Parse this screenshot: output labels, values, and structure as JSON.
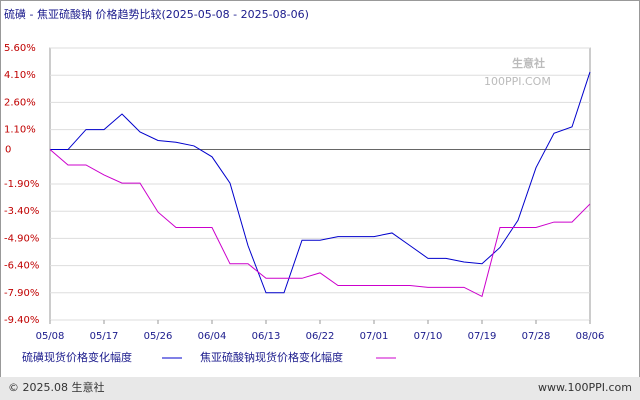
{
  "chart_data": {
    "type": "line",
    "title": "硫磺 - 焦亚硫酸钠 价格趋势比较(2025-05-08 - 2025-08-06)",
    "x": [
      "05/08",
      "05/11",
      "05/14",
      "05/17",
      "05/20",
      "05/23",
      "05/26",
      "05/29",
      "06/01",
      "06/04",
      "06/07",
      "06/10",
      "06/13",
      "06/16",
      "06/19",
      "06/22",
      "06/25",
      "06/28",
      "07/01",
      "07/04",
      "07/07",
      "07/10",
      "07/13",
      "07/16",
      "07/19",
      "07/22",
      "07/25",
      "07/28",
      "07/31",
      "08/03",
      "08/06"
    ],
    "xticks": [
      "05/08",
      "05/17",
      "05/26",
      "06/04",
      "06/13",
      "06/22",
      "07/01",
      "07/10",
      "07/19",
      "07/28",
      "08/06"
    ],
    "series": [
      {
        "name": "硫磺现货价格变化幅度",
        "color": "#0000cc",
        "values": [
          0,
          0,
          1.1,
          1.1,
          1.96,
          0.97,
          0.5,
          0.4,
          0.2,
          -0.4,
          -1.85,
          -5.3,
          -7.9,
          -7.9,
          -5.0,
          -5.0,
          -4.8,
          -4.8,
          -4.8,
          -4.6,
          -5.3,
          -6.0,
          -6.0,
          -6.2,
          -6.3,
          -5.4,
          -3.9,
          -1.0,
          0.9,
          1.25,
          4.28
        ]
      },
      {
        "name": "焦亚硫酸钠现货价格变化幅度",
        "color": "#cc00cc",
        "values": [
          0,
          -0.85,
          -0.85,
          -1.4,
          -1.85,
          -1.85,
          -3.45,
          -4.3,
          -4.3,
          -4.3,
          -6.3,
          -6.3,
          -7.1,
          -7.1,
          -7.1,
          -6.8,
          -7.5,
          -7.5,
          -7.5,
          -7.5,
          -7.5,
          -7.6,
          -7.6,
          -7.6,
          -8.1,
          -4.3,
          -4.3,
          -4.3,
          -4.0,
          -4.0,
          -3.0
        ]
      }
    ],
    "ylim": [
      -9.4,
      5.6
    ],
    "yticks": [
      {
        "value": 5.6,
        "label": "5.60%"
      },
      {
        "value": 4.1,
        "label": "4.10%"
      },
      {
        "value": 2.6,
        "label": "2.60%"
      },
      {
        "value": 1.1,
        "label": "1.10%"
      },
      0,
      {
        "value": -1.9,
        "label": "-1.90%"
      },
      {
        "value": -3.4,
        "label": "-3.40%"
      },
      {
        "value": -4.9,
        "label": "-4.90%"
      },
      {
        "value": -6.4,
        "label": "-6.40%"
      },
      {
        "value": -7.9,
        "label": "-7.90%"
      },
      {
        "value": -9.4,
        "label": "-9.40%"
      }
    ],
    "watermark": "生意社",
    "watermark_url": "100PPI.COM",
    "footer_left": "© 2025.08 生意社",
    "footer_right": "www.100PPI.com"
  }
}
